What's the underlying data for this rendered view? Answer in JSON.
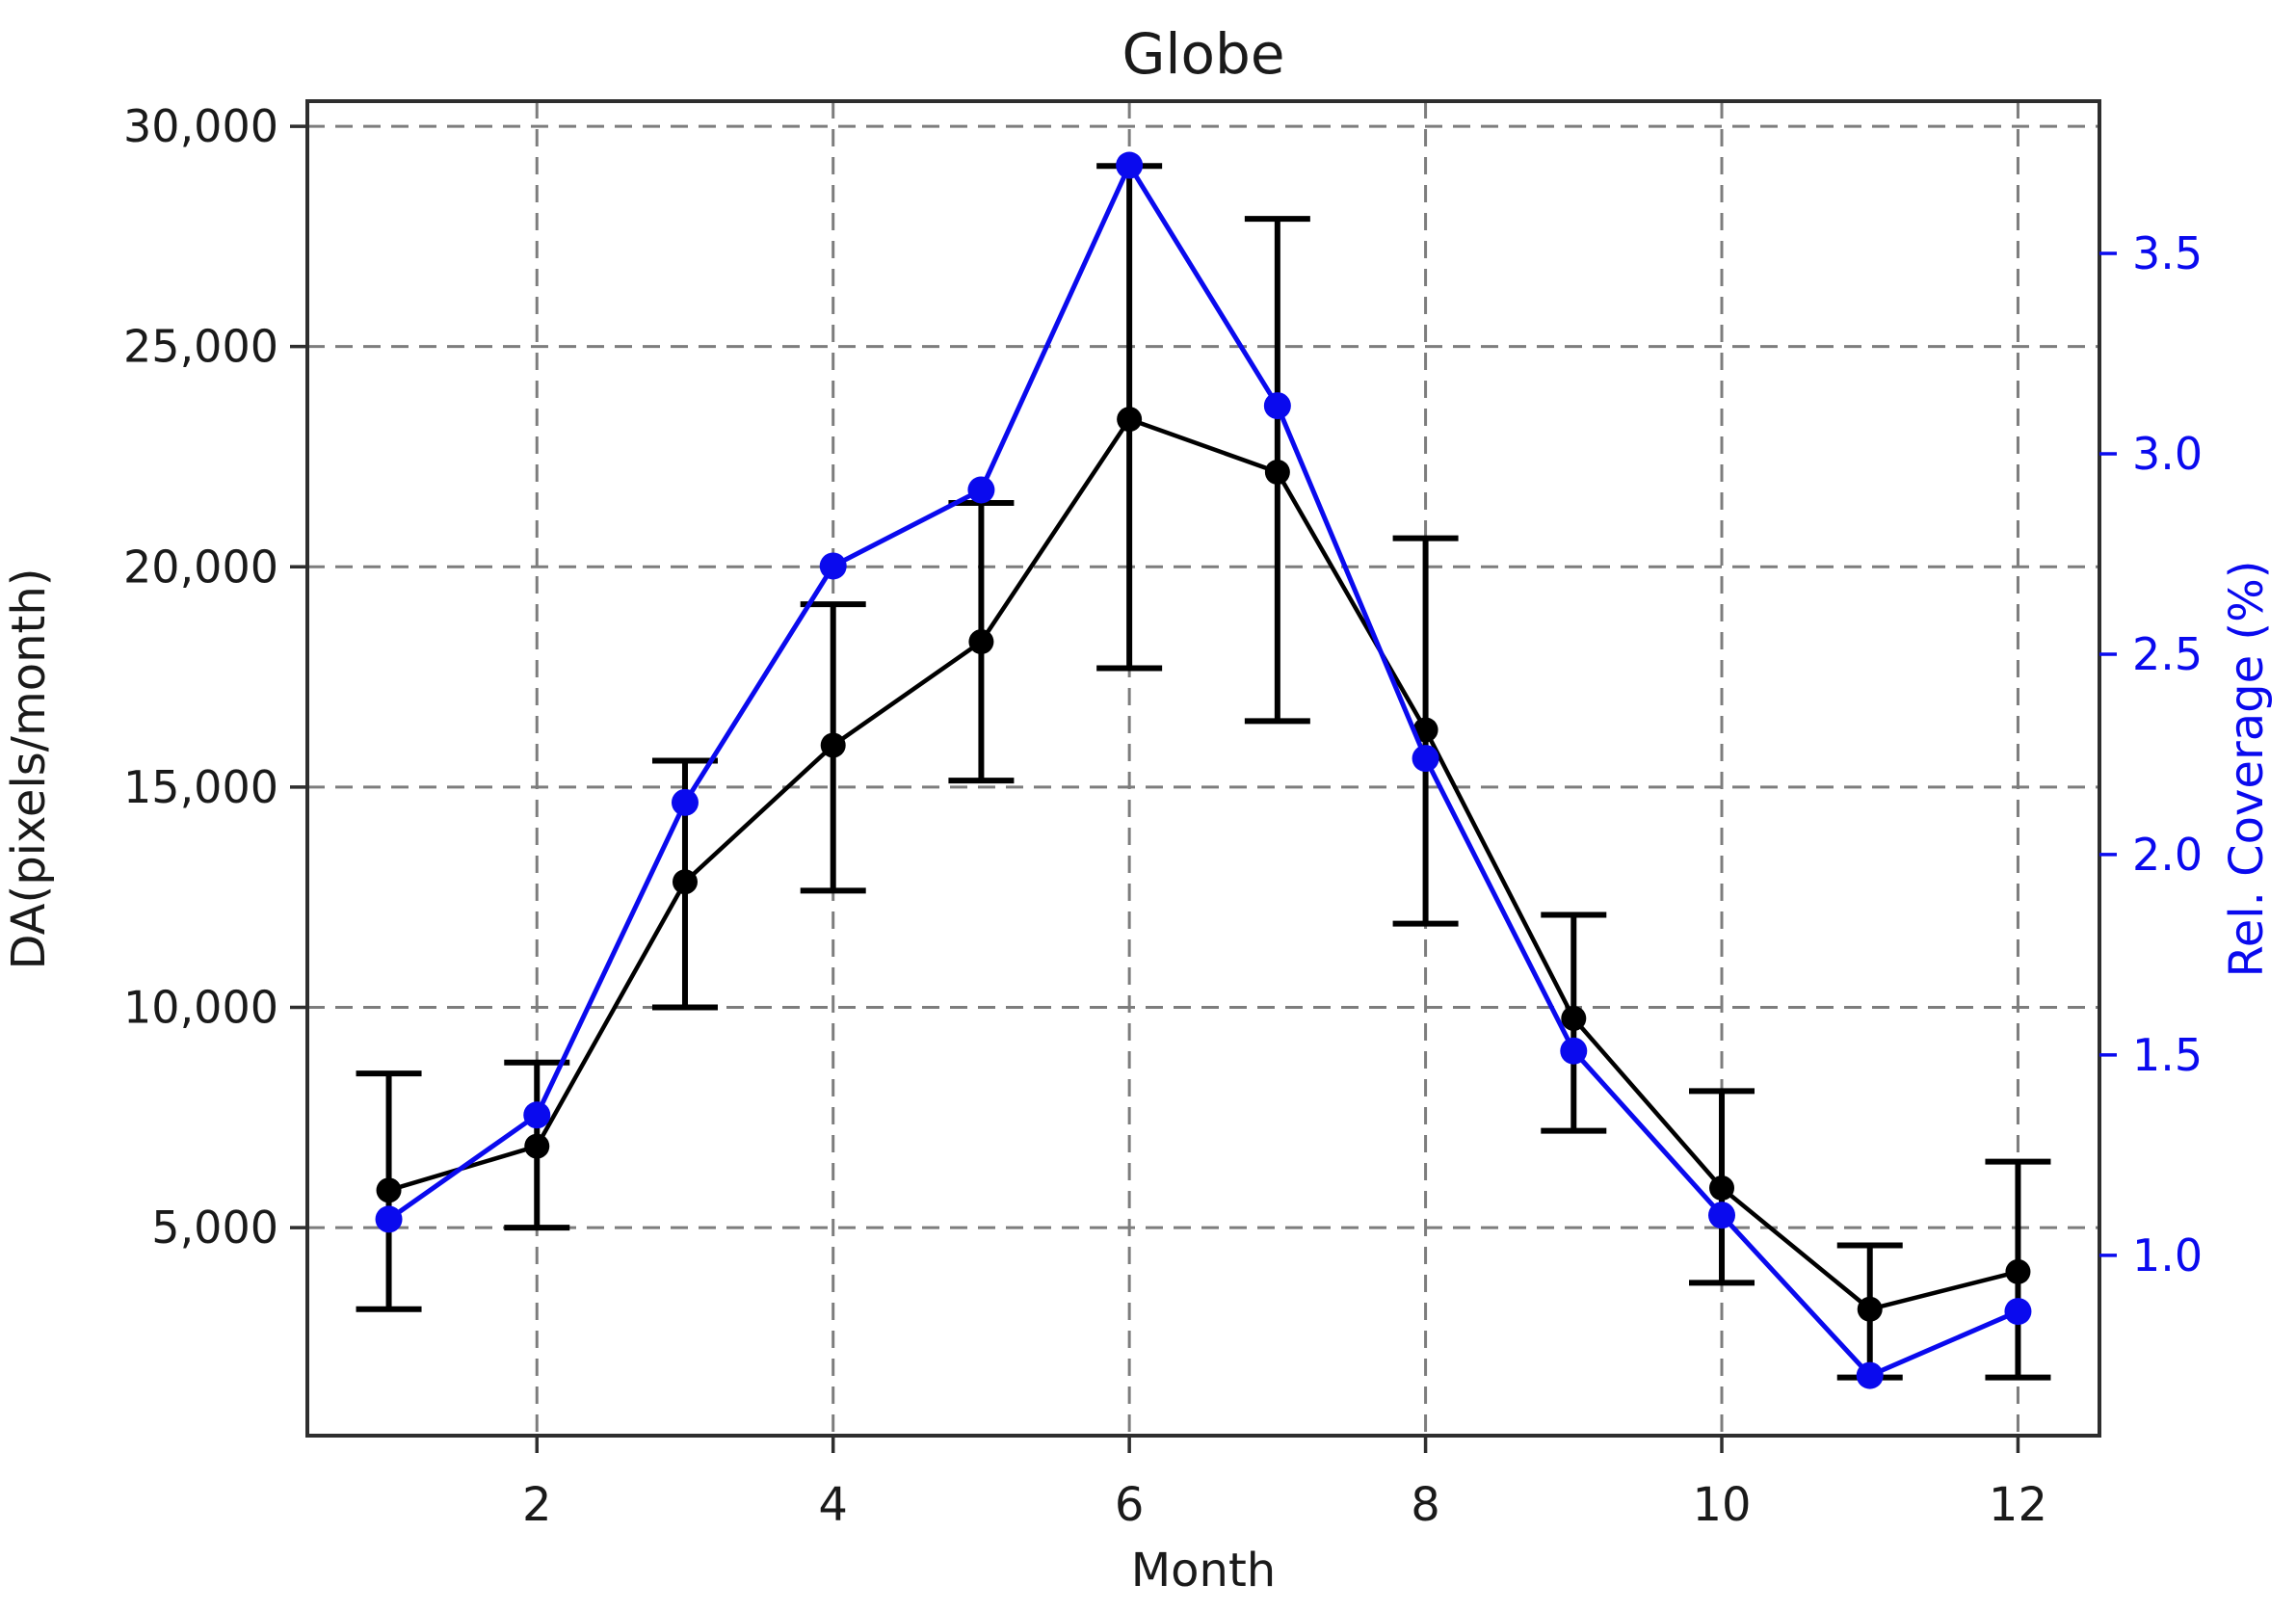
{
  "title": "Globe",
  "colors": {
    "da_series": "#000000",
    "coverage_series": "#0a0aee",
    "grid": "#7d7d7d",
    "spine": "#2e2e2e",
    "tick_label_left": "#1a1a1a",
    "tick_label_right": "#0a0aee"
  },
  "axes": {
    "x": {
      "label": "Month",
      "tick_values": [
        2,
        4,
        6,
        8,
        10,
        12
      ],
      "tick_labels": [
        "2",
        "4",
        "6",
        "8",
        "10",
        "12"
      ],
      "range": [
        0.45,
        12.55
      ]
    },
    "y_left": {
      "label": "DA(pixels/month)",
      "tick_values": [
        5000,
        10000,
        15000,
        20000,
        25000,
        30000
      ],
      "tick_labels": [
        "5,000",
        "10,000",
        "15,000",
        "20,000",
        "25,000",
        "30,000"
      ],
      "range": [
        280,
        30570
      ]
    },
    "y_right": {
      "label": "Rel. Coverage (%)",
      "tick_values": [
        1.0,
        1.5,
        2.0,
        2.5,
        3.0,
        3.5
      ],
      "tick_labels": [
        "1.0",
        "1.5",
        "2.0",
        "2.5",
        "3.0",
        "3.5"
      ],
      "range": [
        0.55,
        3.88
      ]
    }
  },
  "chart_data": {
    "type": "line",
    "title": "Globe",
    "xlabel": "Month",
    "ylabel_left": "DA(pixels/month)",
    "ylabel_right": "Rel. Coverage (%)",
    "grid": "dashed",
    "legend_position": "none",
    "x": [
      1,
      2,
      3,
      4,
      5,
      6,
      7,
      8,
      9,
      10,
      11,
      12
    ],
    "xlim": [
      0.45,
      12.55
    ],
    "ylim_left": [
      280,
      30570
    ],
    "ylim_right": [
      0.55,
      3.88
    ],
    "series": [
      {
        "name": "DA(pixels/month)",
        "axis": "left",
        "color": "#000000",
        "marker": "circle",
        "values": [
          5850,
          6850,
          12850,
          15950,
          18300,
          23350,
          22150,
          16300,
          9750,
          5900,
          3150,
          4000
        ],
        "error_low": [
          3150,
          5000,
          10000,
          12650,
          15150,
          17700,
          16500,
          11900,
          7200,
          3750,
          1600,
          1600
        ],
        "error_high": [
          8500,
          8750,
          15600,
          19150,
          21450,
          29100,
          27900,
          20650,
          12100,
          8100,
          4600,
          6500
        ]
      },
      {
        "name": "Rel. Coverage (%)",
        "axis": "right",
        "color": "#0a0aee",
        "marker": "circle",
        "values": [
          1.09,
          1.35,
          2.13,
          2.72,
          2.91,
          3.72,
          3.12,
          2.24,
          1.51,
          1.1,
          0.7,
          0.86
        ]
      }
    ]
  }
}
